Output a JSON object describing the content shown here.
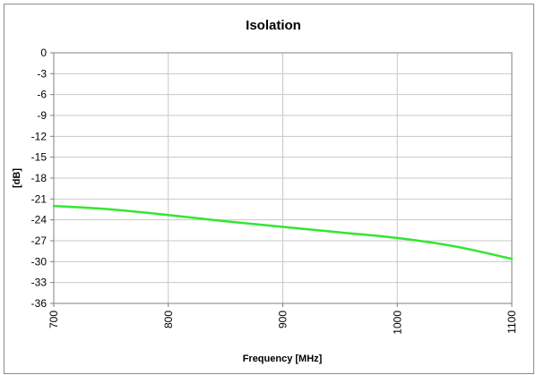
{
  "chart_data": {
    "type": "line",
    "title": "Isolation",
    "xlabel": "Frequency [MHz]",
    "ylabel": "[dB]",
    "xlim": [
      700,
      1100
    ],
    "ylim": [
      -36,
      0
    ],
    "x_ticks": [
      "700",
      "800",
      "900",
      "1000",
      "1100"
    ],
    "y_ticks": [
      "0",
      "-3",
      "-6",
      "-9",
      "-12",
      "-15",
      "-18",
      "-21",
      "-24",
      "-27",
      "-30",
      "-33",
      "-36"
    ],
    "grid": true,
    "legend": "none",
    "series": [
      {
        "color": "#33e633",
        "x": [
          700,
          750,
          800,
          850,
          900,
          950,
          1000,
          1050,
          1100
        ],
        "y": [
          -22.0,
          -22.5,
          -23.3,
          -24.2,
          -25.0,
          -25.8,
          -26.6,
          -27.8,
          -29.6
        ]
      }
    ]
  }
}
